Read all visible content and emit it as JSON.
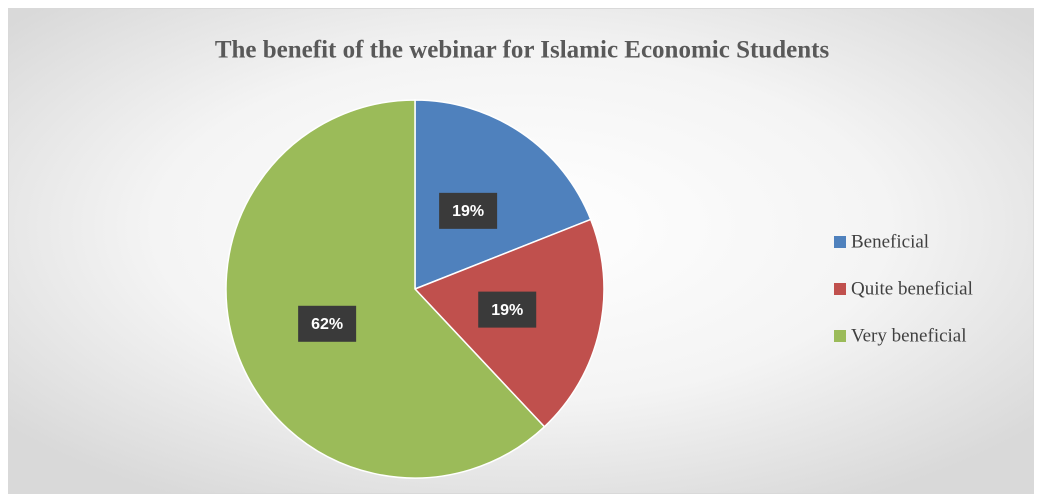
{
  "chart_data": {
    "type": "pie",
    "title": "The benefit of the webinar for Islamic Economic Students",
    "categories": [
      "Beneficial",
      "Quite beneficial",
      "Very beneficial"
    ],
    "values": [
      19,
      19,
      62
    ],
    "value_labels": [
      "19%",
      "19%",
      "62%"
    ],
    "colors": [
      "#4f81bd",
      "#c0504d",
      "#9bbb59"
    ],
    "legend": "right"
  }
}
